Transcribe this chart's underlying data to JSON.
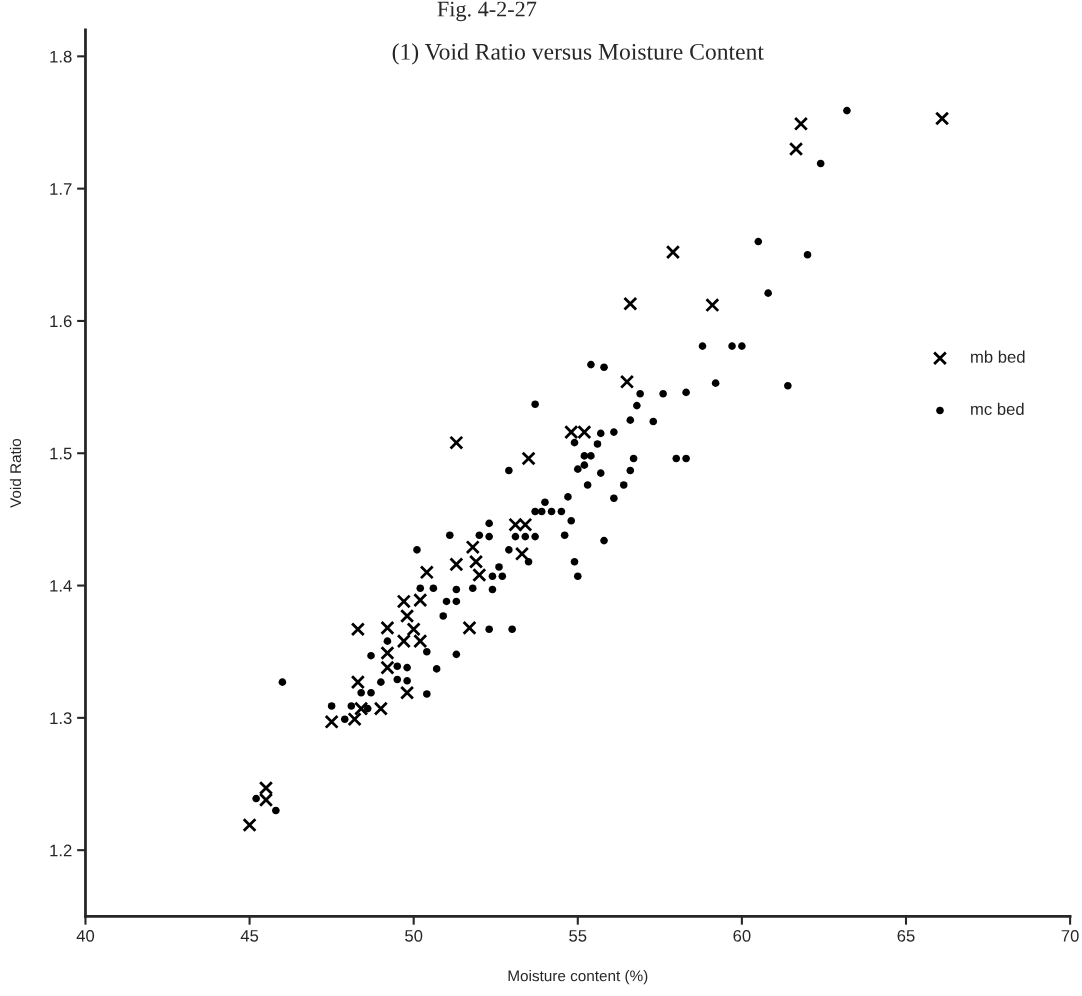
{
  "chart_data": {
    "type": "scatter",
    "title": "Fig. 4-2-27",
    "subtitle": "(1) Void Ratio versus Moisture Content",
    "xlabel": "Moisture content (%)",
    "ylabel": "Void Ratio",
    "xlim": [
      40,
      70
    ],
    "xticks": [
      40,
      45,
      50,
      55,
      60,
      65,
      70
    ],
    "ylim": [
      1.15,
      1.82
    ],
    "yticks": [
      1.2,
      1.3,
      1.4,
      1.5,
      1.6,
      1.7,
      1.8
    ],
    "grid": false,
    "legend": "right",
    "series": [
      {
        "name": "mb bed",
        "color": "#000000",
        "marker": "cross",
        "x": [
          66.1,
          61.8,
          61.65,
          57.9,
          56.6,
          59.1,
          56.5,
          54.8,
          55.2,
          51.3,
          53.5,
          53.1,
          53.4,
          53.3,
          51.8,
          51.3,
          51.9,
          52.0,
          50.4,
          49.7,
          50.2,
          49.8,
          48.3,
          49.2,
          50.0,
          51.7,
          49.7,
          50.2,
          49.2,
          49.2,
          48.3,
          49.8,
          47.5,
          48.2,
          48.4,
          49.0,
          45.5,
          45.5,
          45.0
        ],
        "values": [
          1.753,
          1.749,
          1.73,
          1.652,
          1.613,
          1.612,
          1.554,
          1.516,
          1.516,
          1.508,
          1.496,
          1.446,
          1.446,
          1.424,
          1.429,
          1.416,
          1.418,
          1.408,
          1.41,
          1.388,
          1.389,
          1.377,
          1.367,
          1.368,
          1.367,
          1.368,
          1.358,
          1.358,
          1.349,
          1.338,
          1.327,
          1.319,
          1.297,
          1.299,
          1.307,
          1.307,
          1.247,
          1.238,
          1.219
        ]
      },
      {
        "name": "mc bed",
        "color": "#000000",
        "marker": "circle",
        "x": [
          63.2,
          62.4,
          60.5,
          62.0,
          60.8,
          58.8,
          59.7,
          60.0,
          55.4,
          55.8,
          59.2,
          61.4,
          56.9,
          57.6,
          58.3,
          53.7,
          56.8,
          56.6,
          57.3,
          55.7,
          56.1,
          54.9,
          55.6,
          55.2,
          55.4,
          56.7,
          58.0,
          58.3,
          55.0,
          55.2,
          55.7,
          56.6,
          55.3,
          56.4,
          54.7,
          56.1,
          52.9,
          54.0,
          53.7,
          53.9,
          54.2,
          54.5,
          54.8,
          52.3,
          51.1,
          52.0,
          52.3,
          53.1,
          53.4,
          53.7,
          54.6,
          55.8,
          50.1,
          52.9,
          53.5,
          54.9,
          55.0,
          52.6,
          52.4,
          52.7,
          50.2,
          50.6,
          51.3,
          51.8,
          52.4,
          51.0,
          51.3,
          50.9,
          52.3,
          53.0,
          49.2,
          50.4,
          51.3,
          48.7,
          49.5,
          49.8,
          50.7,
          46.0,
          49.0,
          49.5,
          49.8,
          48.4,
          48.7,
          50.4,
          47.5,
          47.9,
          48.1,
          48.6,
          45.2,
          45.8
        ],
        "values": [
          1.759,
          1.719,
          1.66,
          1.65,
          1.621,
          1.581,
          1.581,
          1.581,
          1.567,
          1.565,
          1.553,
          1.551,
          1.545,
          1.545,
          1.546,
          1.537,
          1.536,
          1.525,
          1.524,
          1.515,
          1.516,
          1.508,
          1.507,
          1.498,
          1.498,
          1.496,
          1.496,
          1.496,
          1.488,
          1.491,
          1.485,
          1.487,
          1.476,
          1.476,
          1.467,
          1.466,
          1.487,
          1.463,
          1.456,
          1.456,
          1.456,
          1.456,
          1.449,
          1.447,
          1.438,
          1.438,
          1.437,
          1.437,
          1.437,
          1.437,
          1.438,
          1.434,
          1.427,
          1.427,
          1.418,
          1.418,
          1.407,
          1.414,
          1.407,
          1.407,
          1.398,
          1.398,
          1.397,
          1.398,
          1.397,
          1.388,
          1.388,
          1.377,
          1.367,
          1.367,
          1.358,
          1.35,
          1.348,
          1.347,
          1.339,
          1.338,
          1.337,
          1.327,
          1.327,
          1.329,
          1.328,
          1.319,
          1.319,
          1.318,
          1.309,
          1.299,
          1.309,
          1.307,
          1.239,
          1.23
        ]
      }
    ]
  }
}
